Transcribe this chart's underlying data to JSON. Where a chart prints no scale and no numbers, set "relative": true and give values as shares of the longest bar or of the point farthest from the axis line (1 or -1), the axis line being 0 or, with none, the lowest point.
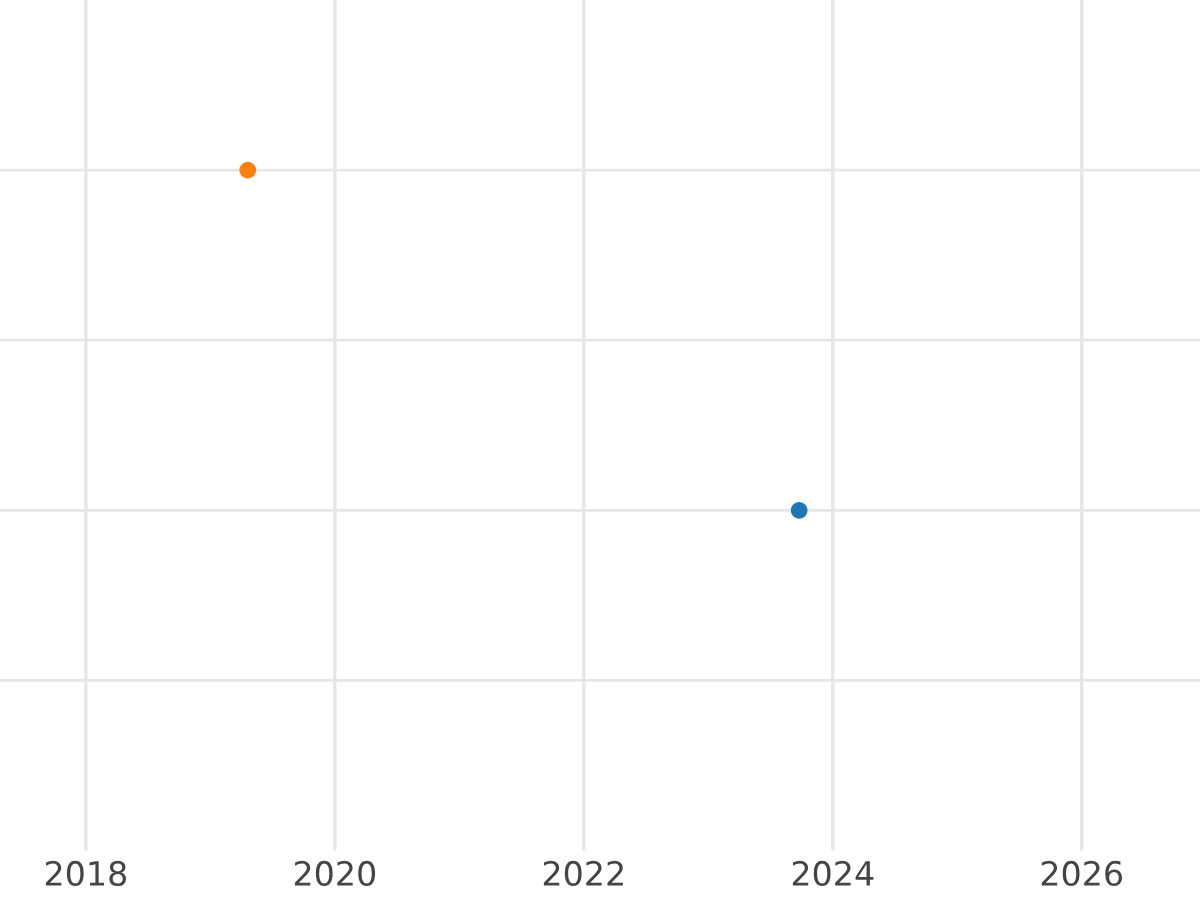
{
  "chart_data": {
    "type": "scatter",
    "x": [
      2019.3,
      2023.73
    ],
    "values": [
      1,
      0.5
    ],
    "colors": [
      "#ff7f0e",
      "#1f77b4"
    ],
    "relative": true,
    "xlim": [
      2017.31,
      2026.95
    ],
    "xticks": [
      2018,
      2020,
      2022,
      2024,
      2026
    ],
    "grid": true,
    "marker": "circle",
    "tick_labels": "x"
  }
}
